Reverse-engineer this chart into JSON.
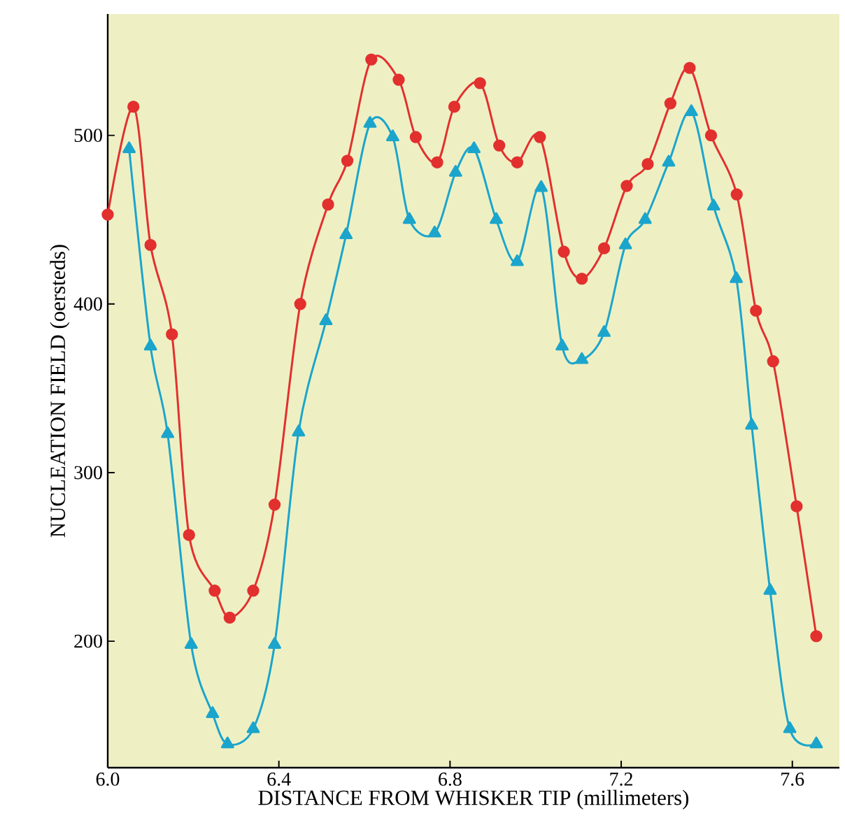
{
  "chart_data": {
    "type": "line",
    "xlabel": "DISTANCE FROM WHISKER TIP (millimeters)",
    "ylabel": "NUCLEATION FIELD (oersteds)",
    "xlim": [
      6.0,
      7.71
    ],
    "ylim": [
      125,
      572
    ],
    "xticks": [
      {
        "value": 6.0,
        "label": "6.0"
      },
      6.4,
      6.8,
      7.2,
      7.6
    ],
    "yticks": [
      200,
      300,
      400,
      500
    ],
    "line_style": "solid",
    "series": [
      {
        "color": "#e2302e",
        "marker": "circle",
        "x": [
          6.0,
          6.06,
          6.1,
          6.15,
          6.19,
          6.25,
          6.285,
          6.34,
          6.39,
          6.45,
          6.515,
          6.56,
          6.616,
          6.68,
          6.72,
          6.77,
          6.81,
          6.87,
          6.915,
          6.957,
          7.01,
          7.066,
          7.108,
          7.16,
          7.213,
          7.262,
          7.315,
          7.36,
          7.41,
          7.47,
          7.515,
          7.555,
          7.61,
          7.656
        ],
        "values": [
          453,
          517,
          435,
          382,
          263,
          230,
          214,
          230,
          281,
          400,
          459,
          485,
          545,
          533,
          499,
          484,
          517,
          531,
          494,
          484,
          499,
          431,
          415,
          433,
          470,
          483,
          519,
          540,
          500,
          465,
          396,
          366,
          280,
          203
        ]
      },
      {
        "color": "#1ba5cc",
        "marker": "triangle",
        "x": [
          6.05,
          6.1,
          6.14,
          6.195,
          6.245,
          6.28,
          6.34,
          6.39,
          6.446,
          6.51,
          6.557,
          6.613,
          6.666,
          6.705,
          6.764,
          6.813,
          6.856,
          6.908,
          6.957,
          7.013,
          7.062,
          7.108,
          7.16,
          7.21,
          7.256,
          7.311,
          7.364,
          7.416,
          7.469,
          7.505,
          7.548,
          7.594,
          7.656
        ],
        "values": [
          492,
          375,
          323,
          198,
          157,
          139,
          148,
          198,
          324,
          390,
          441,
          507,
          499,
          450,
          442,
          478,
          492,
          450,
          425,
          469,
          375,
          367,
          383,
          435,
          450,
          484,
          514,
          458,
          415,
          328,
          230,
          148,
          139
        ]
      }
    ]
  }
}
